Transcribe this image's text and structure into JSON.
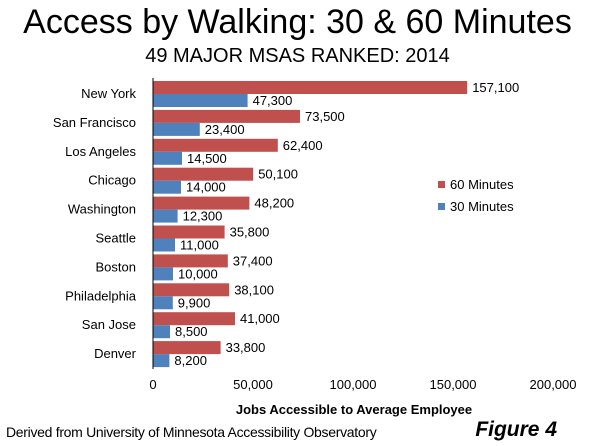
{
  "chart_data": {
    "type": "bar",
    "orientation": "horizontal",
    "title": "Access by Walking: 30 & 60 Minutes",
    "subtitle": "49 MAJOR MSAS RANKED: 2014",
    "xlabel": "Jobs Accessible to Average Employee",
    "ylabel": "",
    "xlim": [
      0,
      200000
    ],
    "xticks": [
      0,
      50000,
      100000,
      150000,
      200000
    ],
    "xtick_labels": [
      "0",
      "50,000",
      "100,000",
      "150,000",
      "200,000"
    ],
    "grid": false,
    "legend_position": "right",
    "categories": [
      "New York",
      "San Francisco",
      "Los Angeles",
      "Chicago",
      "Washington",
      "Seattle",
      "Boston",
      "Philadelphia",
      "San Jose",
      "Denver"
    ],
    "series": [
      {
        "name": "60 Minutes",
        "color": "#c0504d",
        "values": [
          157100,
          73500,
          62400,
          50100,
          48200,
          35800,
          37400,
          38100,
          41000,
          33800
        ],
        "labels": [
          "157,100",
          "73,500",
          "62,400",
          "50,100",
          "48,200",
          "35,800",
          "37,400",
          "38,100",
          "41,000",
          "33,800"
        ]
      },
      {
        "name": "30 Minutes",
        "color": "#4f81bd",
        "values": [
          47300,
          23400,
          14500,
          14000,
          12300,
          11000,
          10000,
          9900,
          8500,
          8200
        ],
        "labels": [
          "47,300",
          "23,400",
          "14,500",
          "14,000",
          "12,300",
          "11,000",
          "10,000",
          "9,900",
          "8,500",
          "8,200"
        ]
      }
    ]
  },
  "footer": {
    "source": "Derived from University of Minnesota Accessibility Observatory",
    "figure": "Figure 4"
  }
}
